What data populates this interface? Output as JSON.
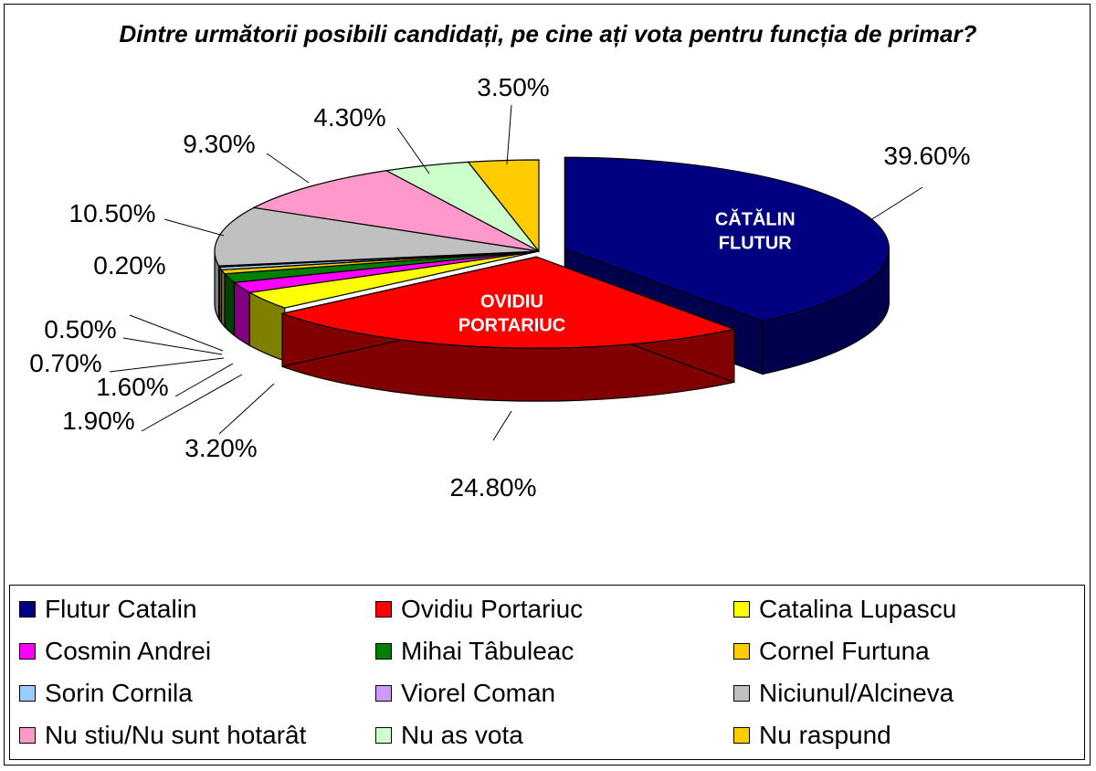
{
  "chart_data": {
    "type": "pie",
    "title": "Dintre următorii posibili candidați, pe cine ați vota pentru funcția de primar?",
    "slices": [
      {
        "name": "Flutur Catalin",
        "value": 39.6,
        "label": "39.60%",
        "inner_label": [
          "CĂTĂLIN",
          "FLUTUR"
        ],
        "color": "#000080",
        "side": "#00004d"
      },
      {
        "name": "Ovidiu Portariuc",
        "value": 24.8,
        "label": "24.80%",
        "inner_label": [
          "OVIDIU",
          "PORTARIUC"
        ],
        "color": "#ff0000",
        "side": "#800000"
      },
      {
        "name": "Catalina Lupascu",
        "value": 3.2,
        "label": "3.20%",
        "color": "#ffff00",
        "side": "#808000"
      },
      {
        "name": "Cosmin Andrei",
        "value": 1.9,
        "label": "1.90%",
        "color": "#ff00ff",
        "side": "#800080"
      },
      {
        "name": "Mihai Tâbuleac",
        "value": 1.6,
        "label": "1.60%",
        "color": "#008000",
        "side": "#004000"
      },
      {
        "name": "Cornel Furtuna",
        "value": 0.7,
        "label": "0.70%",
        "color": "#ffcc00",
        "side": "#806600"
      },
      {
        "name": "Sorin Cornila",
        "value": 0.5,
        "label": "0.50%",
        "color": "#99ccff",
        "side": "#4d6680"
      },
      {
        "name": "Viorel Coman",
        "value": 0.2,
        "label": "0.20%",
        "color": "#cc99ff",
        "side": "#664d80"
      },
      {
        "name": "Niciunul/Alcineva",
        "value": 10.5,
        "label": "10.50%",
        "color": "#c0c0c0",
        "side": "#808080"
      },
      {
        "name": "Nu stiu/Nu sunt hotarât",
        "value": 9.3,
        "label": "9.30%",
        "color": "#ff99cc",
        "side": "#804d66"
      },
      {
        "name": "Nu as vota",
        "value": 4.3,
        "label": "4.30%",
        "color": "#ccffcc",
        "side": "#668066"
      },
      {
        "name": "Nu raspund",
        "value": 3.5,
        "label": "3.50%",
        "color": "#ffcc00",
        "side": "#806600"
      }
    ],
    "legend_placement": "bottom"
  }
}
